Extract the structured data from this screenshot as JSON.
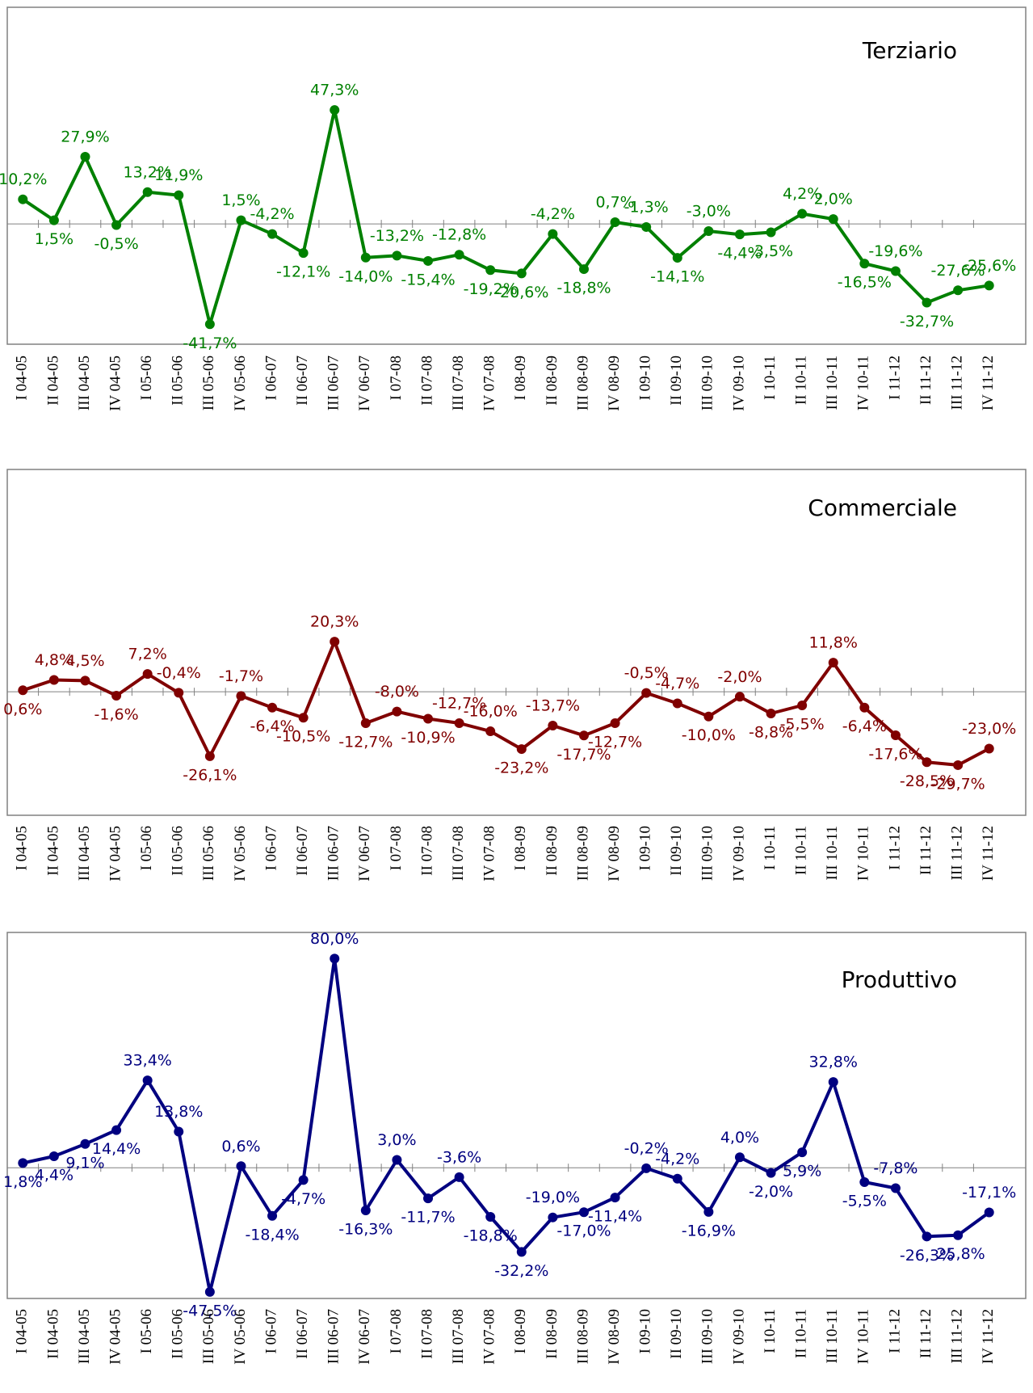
{
  "chart_data": [
    {
      "type": "line",
      "title": "Terziario",
      "color": "#008000",
      "ylim": [
        -50,
        90
      ],
      "categories": [
        "I 04-05",
        "II 04-05",
        "III 04-05",
        "IV 04-05",
        "I 05-06",
        "II 05-06",
        "III 05-06",
        "IV 05-06",
        "I 06-07",
        "II 06-07",
        "III 06-07",
        "IV 06-07",
        "I 07-08",
        "II 07-08",
        "III 07-08",
        "IV 07-08",
        "I 08-09",
        "II 08-09",
        "III 08-09",
        "IV 08-09",
        "I 09-10",
        "II 09-10",
        "III 09-10",
        "IV 09-10",
        "I 10-11",
        "II 10-11",
        "III 10-11",
        "IV 10-11",
        "I 11-12",
        "II 11-12",
        "III 11-12",
        "IV 11-12"
      ],
      "values": [
        10.2,
        1.5,
        27.9,
        -0.5,
        13.2,
        11.9,
        -41.7,
        1.5,
        -4.2,
        -12.1,
        47.3,
        -14.0,
        -13.2,
        -15.4,
        -12.8,
        -19.2,
        -20.6,
        -4.2,
        -18.8,
        0.7,
        -1.3,
        -14.1,
        -3.0,
        -4.4,
        -3.5,
        4.2,
        2.0,
        -16.5,
        -19.6,
        -32.7,
        -27.6,
        -25.6
      ],
      "value_labels": [
        "10,2%",
        "1,5%",
        "27,9%",
        "-0,5%",
        "13,2%",
        "11,9%",
        "-41,7%",
        "1,5%",
        "-4,2%",
        "-12,1%",
        "47,3%",
        "-14,0%",
        "-13,2%",
        "-15,4%",
        "-12,8%",
        "-19,2%",
        "-20,6%",
        "-4,2%",
        "-18,8%",
        "0,7%",
        "-1,3%",
        "-14,1%",
        "-3,0%",
        "-4,4%",
        "-3,5%",
        "4,2%",
        "2,0%",
        "-16,5%",
        "-19,6%",
        "-32,7%",
        "-27,6%",
        "-25,6%"
      ]
    },
    {
      "type": "line",
      "title": "Commerciale",
      "color": "#800000",
      "ylim": [
        -50,
        90
      ],
      "categories": [
        "I 04-05",
        "II 04-05",
        "III 04-05",
        "IV 04-05",
        "I 05-06",
        "II 05-06",
        "III 05-06",
        "IV 05-06",
        "I 06-07",
        "II 06-07",
        "III 06-07",
        "IV 06-07",
        "I 07-08",
        "II 07-08",
        "III 07-08",
        "IV 07-08",
        "I 08-09",
        "II 08-09",
        "III 08-09",
        "IV 08-09",
        "I 09-10",
        "II 09-10",
        "III 09-10",
        "IV 09-10",
        "I 10-11",
        "II 10-11",
        "III 10-11",
        "IV 10-11",
        "I 11-12",
        "II 11-12",
        "III 11-12",
        "IV 11-12"
      ],
      "values": [
        0.6,
        4.8,
        4.5,
        -1.6,
        7.2,
        -0.4,
        -26.1,
        -1.7,
        -6.4,
        -10.5,
        20.3,
        -12.7,
        -8.0,
        -10.9,
        -12.7,
        -16.0,
        -23.2,
        -13.7,
        -17.7,
        -12.7,
        -0.5,
        -4.7,
        -10.0,
        -2.0,
        -8.8,
        -5.5,
        11.8,
        -6.4,
        -17.6,
        -28.5,
        -29.7,
        -23.0
      ],
      "value_labels": [
        "0,6%",
        "4,8%",
        "4,5%",
        "-1,6%",
        "7,2%",
        "-0,4%",
        "-26,1%",
        "-1,7%",
        "-6,4%",
        "-10,5%",
        "20,3%",
        "-12,7%",
        "-8,0%",
        "-10,9%",
        "-12,7%",
        "-16,0%",
        "-23,2%",
        "-13,7%",
        "-17,7%",
        "-12,7%",
        "-0,5%",
        "-4,7%",
        "-10,0%",
        "-2,0%",
        "-8,8%",
        "-5,5%",
        "11,8%",
        "-6,4%",
        "-17,6%",
        "-28,5%",
        "-29,7%",
        "-23,0%"
      ]
    },
    {
      "type": "line",
      "title": "Produttivo",
      "color": "#000080",
      "ylim": [
        -50,
        90
      ],
      "categories": [
        "I 04-05",
        "II 04-05",
        "III 04-05",
        "IV 04-05",
        "I 05-06",
        "II 05-06",
        "III 05-06",
        "IV 05-06",
        "I 06-07",
        "II 06-07",
        "III 06-07",
        "IV 06-07",
        "I 07-08",
        "II 07-08",
        "III 07-08",
        "IV 07-08",
        "I 08-09",
        "II 08-09",
        "III 08-09",
        "IV 08-09",
        "I 09-10",
        "II 09-10",
        "III 09-10",
        "IV 09-10",
        "I 10-11",
        "II 10-11",
        "III 10-11",
        "IV 10-11",
        "I 11-12",
        "II 11-12",
        "III 11-12",
        "IV 11-12"
      ],
      "values": [
        1.8,
        4.4,
        9.1,
        14.4,
        33.4,
        13.8,
        -47.5,
        0.6,
        -18.4,
        -4.7,
        80.0,
        -16.3,
        3.0,
        -11.7,
        -3.6,
        -18.8,
        -32.2,
        -19.0,
        -17.0,
        -11.4,
        -0.2,
        -4.2,
        -16.9,
        4.0,
        -2.0,
        5.9,
        32.8,
        -5.5,
        -7.8,
        -26.3,
        -25.8,
        -17.1
      ],
      "value_labels": [
        "1,8%",
        "4,4%",
        "9,1%",
        "14,4%",
        "33,4%",
        "13,8%",
        "-47,5%",
        "0,6%",
        "-18,4%",
        "-4,7%",
        "80,0%",
        "-16,3%",
        "3,0%",
        "-11,7%",
        "-3,6%",
        "-18,8%",
        "-32,2%",
        "-19,0%",
        "-17,0%",
        "-11,4%",
        "-0,2%",
        "-4,2%",
        "-16,9%",
        "4,0%",
        "-2,0%",
        "5,9%",
        "32,8%",
        "-5,5%",
        "-7,8%",
        "-26,3%",
        "-25,8%",
        "-17,1%"
      ]
    }
  ]
}
